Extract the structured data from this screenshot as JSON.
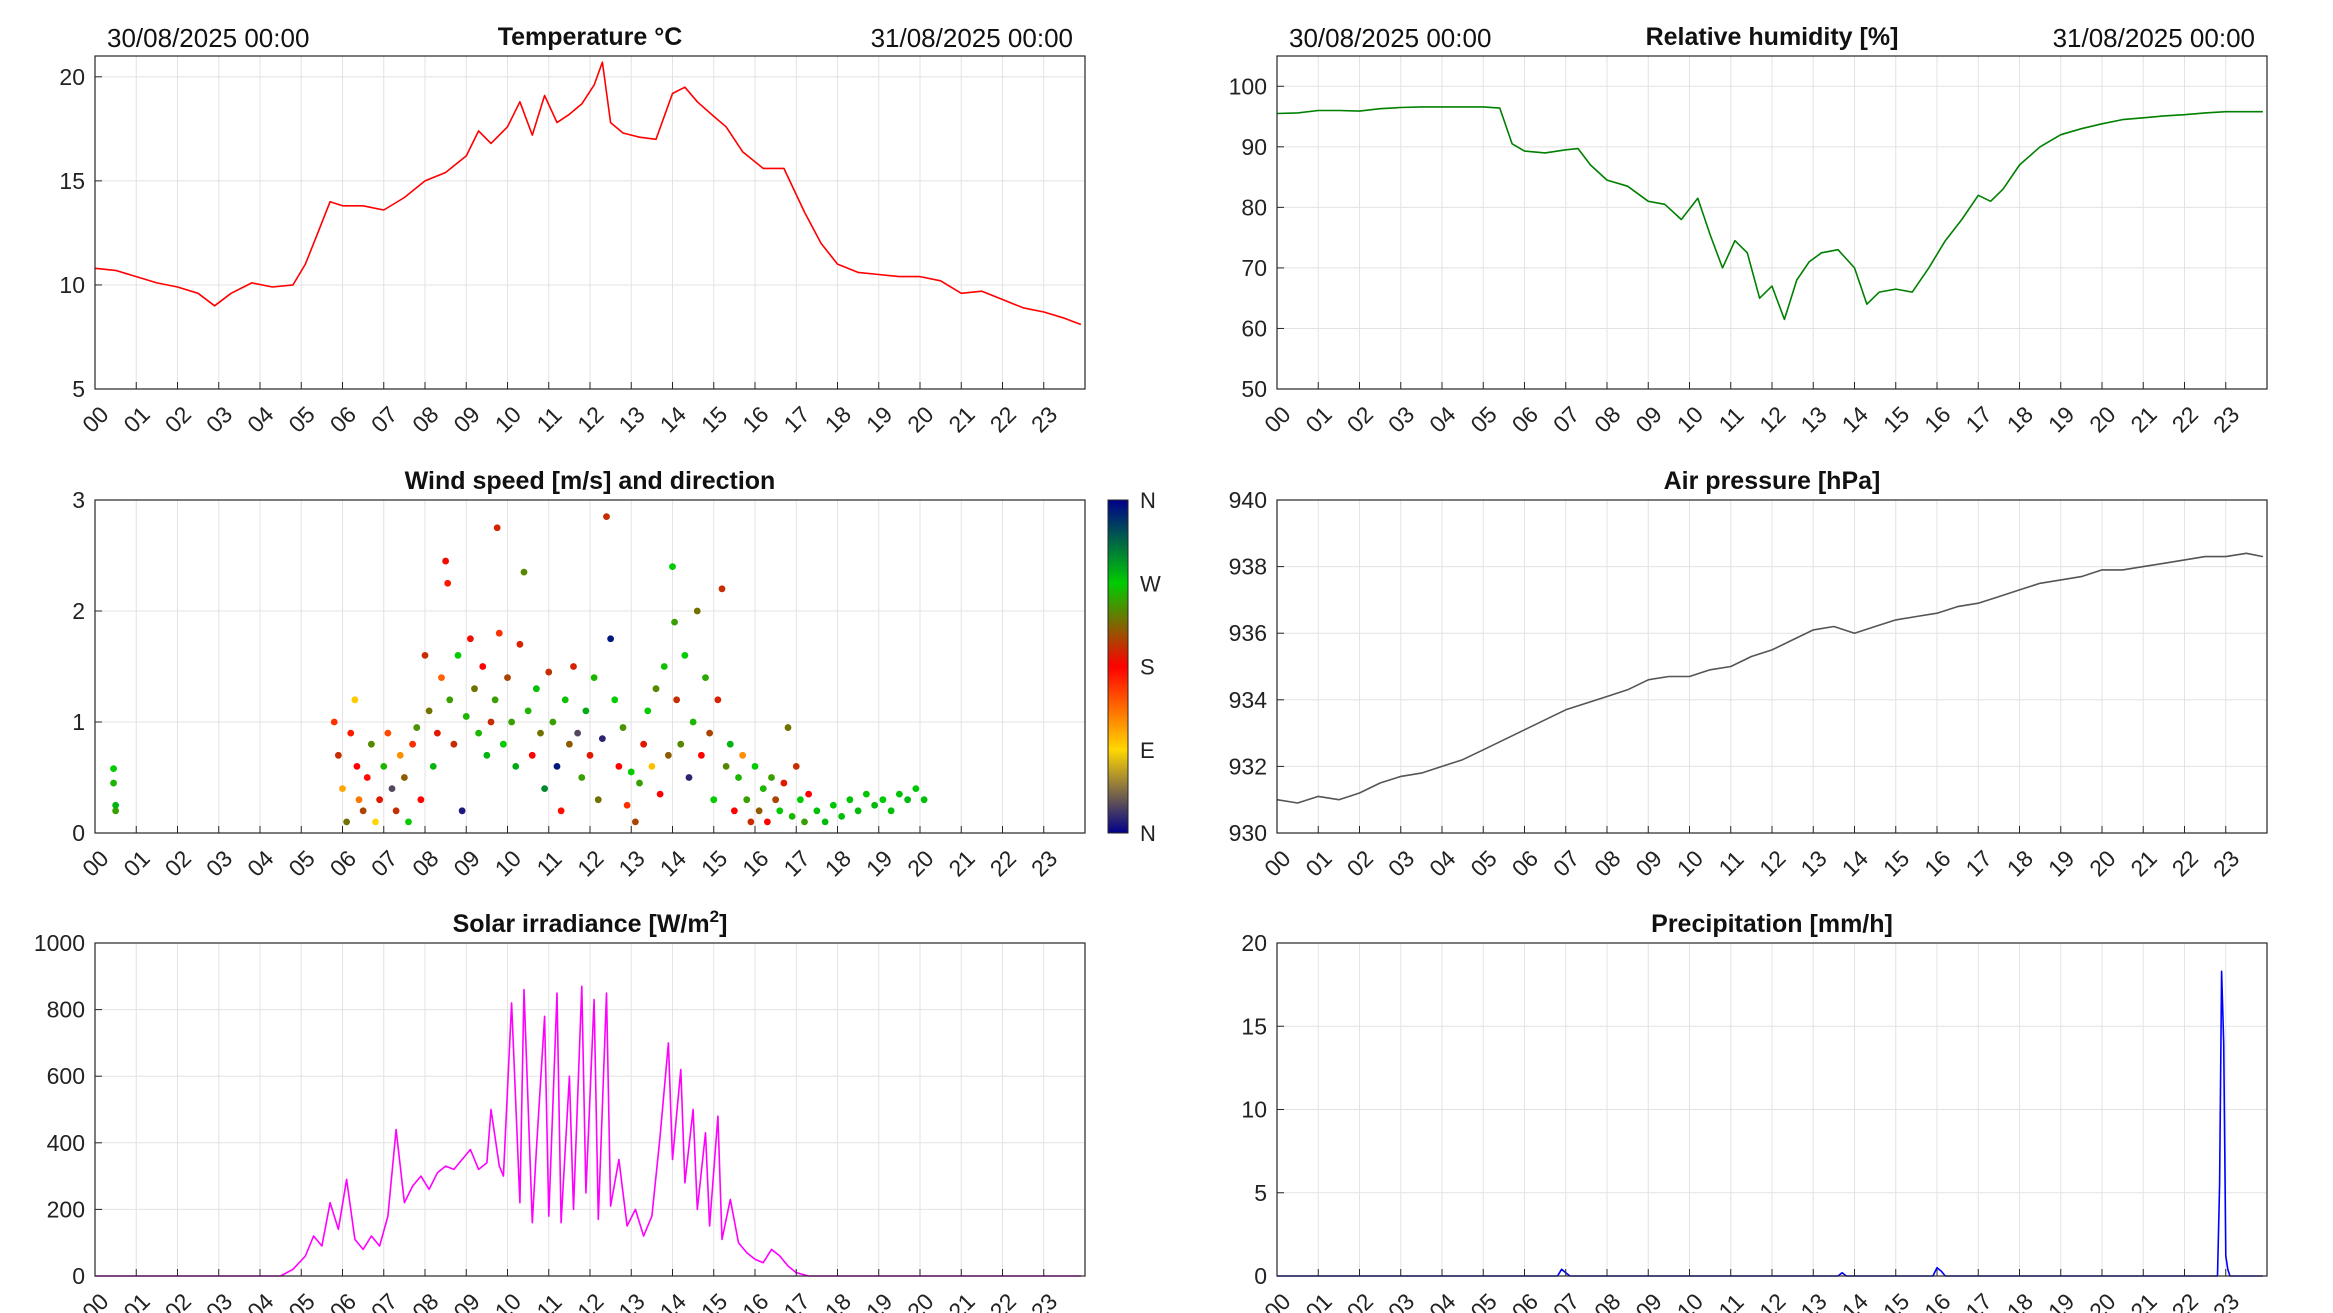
{
  "chart_data": [
    {
      "id": "temperature",
      "type": "line",
      "title": "Temperature °C",
      "title_sup": "",
      "date_start": "30/08/2025 00:00",
      "date_end": "31/08/2025 00:00",
      "color": "#ff0000",
      "ylim": [
        5,
        21
      ],
      "yticks": [
        5,
        10,
        15,
        20
      ],
      "grid": true,
      "x": [
        0,
        0.5,
        1,
        1.5,
        2,
        2.5,
        2.9,
        3.3,
        3.8,
        4.3,
        4.8,
        5.1,
        5.4,
        5.7,
        6.0,
        6.5,
        7.0,
        7.5,
        8.0,
        8.5,
        9.0,
        9.3,
        9.6,
        10.0,
        10.3,
        10.6,
        10.9,
        11.2,
        11.5,
        11.8,
        12.1,
        12.3,
        12.5,
        12.8,
        13.2,
        13.6,
        14.0,
        14.3,
        14.6,
        15.0,
        15.3,
        15.7,
        16.2,
        16.7,
        17.2,
        17.6,
        18.0,
        18.5,
        19.0,
        19.5,
        20.0,
        20.5,
        21.0,
        21.5,
        22.0,
        22.5,
        23.0,
        23.5,
        23.9
      ],
      "values": [
        10.8,
        10.7,
        10.4,
        10.1,
        9.9,
        9.6,
        9.0,
        9.6,
        10.1,
        9.9,
        10.0,
        11.0,
        12.5,
        14.0,
        13.8,
        13.8,
        13.6,
        14.2,
        15.0,
        15.4,
        16.2,
        17.4,
        16.8,
        17.6,
        18.8,
        17.2,
        19.1,
        17.8,
        18.2,
        18.7,
        19.6,
        20.7,
        17.8,
        17.3,
        17.1,
        17.0,
        19.2,
        19.5,
        18.8,
        18.1,
        17.6,
        16.4,
        15.6,
        15.6,
        13.5,
        12.0,
        11.0,
        10.6,
        10.5,
        10.4,
        10.4,
        10.2,
        9.6,
        9.7,
        9.3,
        8.9,
        8.7,
        8.4,
        8.1
      ]
    },
    {
      "id": "humidity",
      "type": "line",
      "title": "Relative humidity [%]",
      "title_sup": "",
      "date_start": "30/08/2025 00:00",
      "date_end": "31/08/2025 00:00",
      "color": "#008000",
      "ylim": [
        50,
        105
      ],
      "yticks": [
        50,
        60,
        70,
        80,
        90,
        100
      ],
      "grid": true,
      "x": [
        0,
        0.5,
        1,
        1.5,
        2,
        2.5,
        3,
        3.5,
        4,
        4.5,
        5,
        5.4,
        5.7,
        6.0,
        6.5,
        7.0,
        7.3,
        7.6,
        8.0,
        8.5,
        9.0,
        9.4,
        9.8,
        10.2,
        10.5,
        10.8,
        11.1,
        11.4,
        11.7,
        12.0,
        12.3,
        12.6,
        12.9,
        13.2,
        13.6,
        14.0,
        14.3,
        14.6,
        15.0,
        15.4,
        15.8,
        16.2,
        16.6,
        17.0,
        17.3,
        17.6,
        18.0,
        18.5,
        19.0,
        19.5,
        20.0,
        20.5,
        21.0,
        21.5,
        22.0,
        22.5,
        23.0,
        23.5,
        23.9
      ],
      "values": [
        95.5,
        95.6,
        96.0,
        96.0,
        95.9,
        96.3,
        96.5,
        96.6,
        96.6,
        96.6,
        96.6,
        96.4,
        90.5,
        89.3,
        89.0,
        89.5,
        89.7,
        87.0,
        84.5,
        83.5,
        81.0,
        80.5,
        78.0,
        81.5,
        75.5,
        70.0,
        74.5,
        72.5,
        65.0,
        67.0,
        61.5,
        68.0,
        71.0,
        72.5,
        73.0,
        70.0,
        64.0,
        66.0,
        66.5,
        66.0,
        70.0,
        74.5,
        78.0,
        82.0,
        81.0,
        83.0,
        87.0,
        90.0,
        92.0,
        93.0,
        93.8,
        94.5,
        94.8,
        95.1,
        95.3,
        95.6,
        95.8,
        95.8,
        95.8
      ]
    },
    {
      "id": "wind",
      "type": "scatter",
      "title": "Wind speed [m/s] and direction",
      "title_sup": "",
      "ylim": [
        0,
        3
      ],
      "yticks": [
        0,
        1,
        2,
        3
      ],
      "grid": true,
      "colorbar_labels": [
        "N",
        "E",
        "S",
        "W",
        "N"
      ],
      "colorbar_colors": [
        "#00008b",
        "#ffd700",
        "#ff0000",
        "#00cc00",
        "#00008b"
      ],
      "points": [
        [
          0.45,
          0.58,
          270
        ],
        [
          0.45,
          0.45,
          260
        ],
        [
          0.5,
          0.2,
          250
        ],
        [
          0.5,
          0.25,
          280
        ],
        [
          5.8,
          1.0,
          160
        ],
        [
          5.9,
          0.7,
          200
        ],
        [
          6.0,
          0.4,
          110
        ],
        [
          6.1,
          0.1,
          230
        ],
        [
          6.2,
          0.9,
          170
        ],
        [
          6.3,
          1.2,
          95
        ],
        [
          6.35,
          0.6,
          180
        ],
        [
          6.4,
          0.3,
          130
        ],
        [
          6.5,
          0.2,
          210
        ],
        [
          6.6,
          0.5,
          175
        ],
        [
          6.7,
          0.8,
          240
        ],
        [
          6.8,
          0.1,
          90
        ],
        [
          6.9,
          0.3,
          190
        ],
        [
          7.0,
          0.6,
          260
        ],
        [
          7.1,
          0.9,
          150
        ],
        [
          7.2,
          0.4,
          30
        ],
        [
          7.3,
          0.2,
          200
        ],
        [
          7.4,
          0.7,
          120
        ],
        [
          7.5,
          0.5,
          220
        ],
        [
          7.6,
          0.1,
          270
        ],
        [
          7.7,
          0.8,
          160
        ],
        [
          7.8,
          0.95,
          245
        ],
        [
          7.9,
          0.3,
          180
        ],
        [
          8.0,
          1.6,
          200
        ],
        [
          8.1,
          1.1,
          230
        ],
        [
          8.2,
          0.6,
          280
        ],
        [
          8.3,
          0.9,
          190
        ],
        [
          8.4,
          1.4,
          140
        ],
        [
          8.5,
          2.45,
          185
        ],
        [
          8.55,
          2.25,
          170
        ],
        [
          8.6,
          1.2,
          250
        ],
        [
          8.7,
          0.8,
          200
        ],
        [
          8.8,
          1.6,
          270
        ],
        [
          8.9,
          0.2,
          10
        ],
        [
          9.0,
          1.05,
          260
        ],
        [
          9.1,
          1.75,
          185
        ],
        [
          9.2,
          1.3,
          230
        ],
        [
          9.3,
          0.9,
          260
        ],
        [
          9.4,
          1.5,
          180
        ],
        [
          9.5,
          0.7,
          280
        ],
        [
          9.6,
          1.0,
          200
        ],
        [
          9.7,
          1.2,
          250
        ],
        [
          9.75,
          2.75,
          195
        ],
        [
          9.8,
          1.8,
          160
        ],
        [
          9.9,
          0.8,
          270
        ],
        [
          10.0,
          1.4,
          210
        ],
        [
          10.1,
          1.0,
          250
        ],
        [
          10.2,
          0.6,
          285
        ],
        [
          10.3,
          1.7,
          195
        ],
        [
          10.4,
          2.35,
          240
        ],
        [
          10.5,
          1.1,
          260
        ],
        [
          10.6,
          0.7,
          180
        ],
        [
          10.7,
          1.3,
          275
        ],
        [
          10.8,
          0.9,
          230
        ],
        [
          10.9,
          0.4,
          300
        ],
        [
          11.0,
          1.45,
          200
        ],
        [
          11.1,
          1.0,
          250
        ],
        [
          11.2,
          0.6,
          350
        ],
        [
          11.3,
          0.2,
          175
        ],
        [
          11.4,
          1.2,
          265
        ],
        [
          11.5,
          0.8,
          220
        ],
        [
          11.6,
          1.5,
          195
        ],
        [
          11.7,
          0.9,
          30
        ],
        [
          11.8,
          0.5,
          250
        ],
        [
          11.9,
          1.1,
          285
        ],
        [
          12.0,
          0.7,
          190
        ],
        [
          12.1,
          1.4,
          260
        ],
        [
          12.2,
          0.3,
          230
        ],
        [
          12.3,
          0.85,
          15
        ],
        [
          12.4,
          2.85,
          200
        ],
        [
          12.5,
          1.75,
          350
        ],
        [
          12.6,
          1.2,
          270
        ],
        [
          12.7,
          0.6,
          180
        ],
        [
          12.8,
          0.95,
          245
        ],
        [
          12.9,
          0.25,
          160
        ],
        [
          13.0,
          0.55,
          270
        ],
        [
          13.1,
          0.1,
          210
        ],
        [
          13.2,
          0.45,
          250
        ],
        [
          13.3,
          0.8,
          190
        ],
        [
          13.4,
          1.1,
          270
        ],
        [
          13.5,
          0.6,
          100
        ],
        [
          13.6,
          1.3,
          240
        ],
        [
          13.7,
          0.35,
          180
        ],
        [
          13.8,
          1.5,
          265
        ],
        [
          13.9,
          0.7,
          220
        ],
        [
          14.0,
          2.4,
          270
        ],
        [
          14.05,
          1.9,
          250
        ],
        [
          14.1,
          1.2,
          200
        ],
        [
          14.2,
          0.8,
          240
        ],
        [
          14.3,
          1.6,
          270
        ],
        [
          14.4,
          0.5,
          15
        ],
        [
          14.5,
          1.0,
          260
        ],
        [
          14.6,
          2.0,
          230
        ],
        [
          14.7,
          0.7,
          180
        ],
        [
          14.8,
          1.4,
          255
        ],
        [
          14.9,
          0.9,
          210
        ],
        [
          15.0,
          0.3,
          270
        ],
        [
          15.1,
          1.2,
          195
        ],
        [
          15.2,
          2.2,
          200
        ],
        [
          15.3,
          0.6,
          240
        ],
        [
          15.4,
          0.8,
          280
        ],
        [
          15.5,
          0.2,
          180
        ],
        [
          15.6,
          0.5,
          260
        ],
        [
          15.7,
          0.7,
          120
        ],
        [
          15.8,
          0.3,
          250
        ],
        [
          15.9,
          0.1,
          200
        ],
        [
          16.0,
          0.6,
          270
        ],
        [
          16.1,
          0.2,
          220
        ],
        [
          16.2,
          0.4,
          260
        ],
        [
          16.3,
          0.1,
          180
        ],
        [
          16.4,
          0.5,
          250
        ],
        [
          16.5,
          0.3,
          210
        ],
        [
          16.6,
          0.2,
          270
        ],
        [
          16.7,
          0.45,
          190
        ],
        [
          16.8,
          0.95,
          230
        ],
        [
          16.9,
          0.15,
          260
        ],
        [
          17.0,
          0.6,
          200
        ],
        [
          17.1,
          0.3,
          270
        ],
        [
          17.2,
          0.1,
          250
        ],
        [
          17.3,
          0.35,
          180
        ],
        [
          17.5,
          0.2,
          275
        ],
        [
          17.7,
          0.1,
          278
        ],
        [
          17.9,
          0.25,
          272
        ],
        [
          18.1,
          0.15,
          276
        ],
        [
          18.3,
          0.3,
          274
        ],
        [
          18.5,
          0.2,
          277
        ],
        [
          18.7,
          0.35,
          273
        ],
        [
          18.9,
          0.25,
          279
        ],
        [
          19.1,
          0.3,
          271
        ],
        [
          19.3,
          0.2,
          276
        ],
        [
          19.5,
          0.35,
          275
        ],
        [
          19.7,
          0.3,
          278
        ],
        [
          19.9,
          0.4,
          272
        ],
        [
          20.1,
          0.3,
          276
        ]
      ]
    },
    {
      "id": "pressure",
      "type": "line",
      "title": "Air pressure [hPa]",
      "title_sup": "",
      "color": "#555555",
      "ylim": [
        930,
        940
      ],
      "yticks": [
        930,
        932,
        934,
        936,
        938,
        940
      ],
      "grid": true,
      "x": [
        0,
        0.5,
        1,
        1.5,
        2,
        2.5,
        3,
        3.5,
        4,
        4.5,
        5,
        5.5,
        6,
        6.5,
        7,
        7.5,
        8,
        8.5,
        9,
        9.5,
        10,
        10.5,
        11,
        11.5,
        12,
        12.5,
        13,
        13.5,
        14,
        14.5,
        15,
        15.5,
        16,
        16.5,
        17,
        17.5,
        18,
        18.5,
        19,
        19.5,
        20,
        20.5,
        21,
        21.5,
        22,
        22.5,
        23,
        23.5,
        23.9
      ],
      "values": [
        931.0,
        930.9,
        931.1,
        931.0,
        931.2,
        931.5,
        931.7,
        931.8,
        932.0,
        932.2,
        932.5,
        932.8,
        933.1,
        933.4,
        933.7,
        933.9,
        934.1,
        934.3,
        934.6,
        934.7,
        934.7,
        934.9,
        935.0,
        935.3,
        935.5,
        935.8,
        936.1,
        936.2,
        936.0,
        936.2,
        936.4,
        936.5,
        936.6,
        936.8,
        936.9,
        937.1,
        937.3,
        937.5,
        937.6,
        937.7,
        937.9,
        937.9,
        938.0,
        938.1,
        938.2,
        938.3,
        938.3,
        938.4,
        938.3
      ]
    },
    {
      "id": "solar",
      "type": "line",
      "title": "Solar irradiance [W/m",
      "title_sup": "2",
      "title_end": "]",
      "color": "#ff00ff",
      "ylim": [
        0,
        1000
      ],
      "yticks": [
        0,
        200,
        400,
        600,
        800,
        1000
      ],
      "grid": true,
      "x": [
        0,
        4.5,
        4.8,
        5.1,
        5.3,
        5.5,
        5.7,
        5.9,
        6.1,
        6.3,
        6.5,
        6.7,
        6.9,
        7.1,
        7.3,
        7.5,
        7.7,
        7.9,
        8.1,
        8.3,
        8.5,
        8.7,
        8.9,
        9.1,
        9.3,
        9.5,
        9.6,
        9.8,
        9.9,
        10.1,
        10.3,
        10.4,
        10.6,
        10.7,
        10.9,
        11.0,
        11.2,
        11.3,
        11.5,
        11.6,
        11.8,
        11.9,
        12.1,
        12.2,
        12.4,
        12.5,
        12.7,
        12.9,
        13.1,
        13.3,
        13.5,
        13.7,
        13.9,
        14.0,
        14.2,
        14.3,
        14.5,
        14.6,
        14.8,
        14.9,
        15.1,
        15.2,
        15.4,
        15.6,
        15.8,
        16.0,
        16.2,
        16.4,
        16.6,
        16.8,
        17.0,
        17.3,
        17.6,
        23.9
      ],
      "values": [
        0,
        0,
        20,
        60,
        120,
        90,
        220,
        140,
        290,
        110,
        80,
        120,
        90,
        180,
        440,
        220,
        270,
        300,
        260,
        310,
        330,
        320,
        350,
        380,
        320,
        340,
        500,
        330,
        300,
        820,
        220,
        860,
        160,
        380,
        780,
        180,
        850,
        160,
        600,
        200,
        870,
        250,
        830,
        170,
        850,
        210,
        350,
        150,
        200,
        120,
        180,
        420,
        700,
        350,
        620,
        280,
        500,
        200,
        430,
        150,
        480,
        110,
        230,
        100,
        70,
        50,
        40,
        80,
        60,
        30,
        10,
        0,
        0,
        0
      ]
    },
    {
      "id": "precip",
      "type": "line",
      "title": "Precipitation [mm/h]",
      "title_sup": "",
      "color": "#0000ff",
      "ylim": [
        0,
        20
      ],
      "yticks": [
        0,
        5,
        10,
        15,
        20
      ],
      "grid": true,
      "x": [
        0,
        6.8,
        6.9,
        7.0,
        7.1,
        13.6,
        13.7,
        13.8,
        15.9,
        16.0,
        16.1,
        16.2,
        22.8,
        22.85,
        22.9,
        22.95,
        23.0,
        23.05,
        23.1,
        23.9
      ],
      "values": [
        0,
        0,
        0.4,
        0.2,
        0,
        0,
        0.2,
        0,
        0,
        0.5,
        0.3,
        0,
        0,
        5.5,
        18.3,
        14.0,
        1.2,
        0.4,
        0,
        0
      ]
    }
  ],
  "x_axis": {
    "ticks": [
      "00",
      "01",
      "02",
      "03",
      "04",
      "05",
      "06",
      "07",
      "08",
      "09",
      "10",
      "11",
      "12",
      "13",
      "14",
      "15",
      "16",
      "17",
      "18",
      "19",
      "20",
      "21",
      "22",
      "23"
    ],
    "range": [
      0,
      24
    ]
  }
}
